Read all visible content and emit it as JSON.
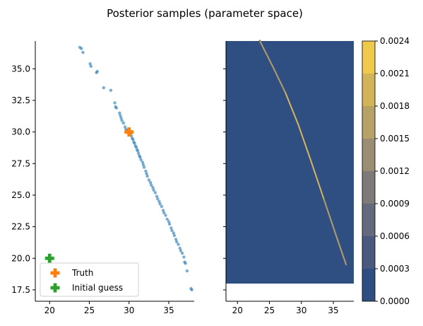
{
  "title": "Posterior samples (parameter space)",
  "colors": {
    "samples": "#1f77b4",
    "truth": "#ff7f0e",
    "initial": "#2ca02c",
    "cmap": [
      "#2f4f83",
      "#4a5a7f",
      "#65697d",
      "#7f7a7a",
      "#9a8d73",
      "#b6a166",
      "#d2b458",
      "#eec94c"
    ]
  },
  "chart_data": [
    {
      "type": "scatter",
      "xlim": [
        18.2,
        38.2
      ],
      "ylim": [
        16.6,
        37.2
      ],
      "xticks": [
        {
          "v": 20,
          "label": "20"
        },
        {
          "v": 25,
          "label": "25"
        },
        {
          "v": 30,
          "label": "30"
        },
        {
          "v": 35,
          "label": "35"
        }
      ],
      "yticks": [
        {
          "v": 17.5,
          "label": "17.5"
        },
        {
          "v": 20.0,
          "label": "20.0"
        },
        {
          "v": 22.5,
          "label": "22.5"
        },
        {
          "v": 25.0,
          "label": "25.0"
        },
        {
          "v": 27.5,
          "label": "27.5"
        },
        {
          "v": 30.0,
          "label": "30.0"
        },
        {
          "v": 32.5,
          "label": "32.5"
        },
        {
          "v": 35.0,
          "label": "35.0"
        }
      ],
      "samples": [
        [
          23.8,
          36.7
        ],
        [
          24.0,
          36.6
        ],
        [
          24.2,
          36.3
        ],
        [
          25.1,
          35.4
        ],
        [
          25.2,
          35.2
        ],
        [
          25.9,
          34.7
        ],
        [
          26.0,
          34.8
        ],
        [
          26.8,
          33.5
        ],
        [
          27.7,
          33.3
        ],
        [
          28.2,
          32.3
        ],
        [
          28.3,
          32.0
        ],
        [
          28.4,
          31.9
        ],
        [
          28.8,
          31.5
        ],
        [
          28.9,
          31.3
        ],
        [
          29.0,
          31.1
        ],
        [
          29.1,
          30.9
        ],
        [
          29.3,
          30.7
        ],
        [
          29.5,
          30.4
        ],
        [
          29.6,
          30.2
        ],
        [
          29.8,
          30.1
        ],
        [
          30.2,
          29.9
        ],
        [
          30.3,
          29.7
        ],
        [
          30.4,
          29.5
        ],
        [
          30.5,
          29.4
        ],
        [
          30.6,
          29.2
        ],
        [
          30.7,
          29.1
        ],
        [
          30.8,
          28.9
        ],
        [
          30.9,
          28.8
        ],
        [
          31.0,
          28.6
        ],
        [
          31.1,
          28.5
        ],
        [
          31.2,
          28.3
        ],
        [
          31.3,
          28.1
        ],
        [
          31.4,
          28.0
        ],
        [
          31.5,
          27.8
        ],
        [
          31.7,
          27.6
        ],
        [
          31.8,
          27.4
        ],
        [
          31.9,
          27.2
        ],
        [
          32.1,
          26.9
        ],
        [
          32.2,
          26.7
        ],
        [
          32.3,
          26.5
        ],
        [
          32.5,
          26.2
        ],
        [
          32.7,
          26.0
        ],
        [
          32.8,
          25.8
        ],
        [
          33.0,
          25.6
        ],
        [
          33.1,
          25.4
        ],
        [
          33.3,
          25.2
        ],
        [
          33.5,
          24.9
        ],
        [
          33.6,
          24.7
        ],
        [
          33.8,
          24.5
        ],
        [
          33.9,
          24.3
        ],
        [
          34.1,
          24.1
        ],
        [
          34.3,
          23.8
        ],
        [
          34.4,
          23.6
        ],
        [
          34.6,
          23.4
        ],
        [
          34.8,
          23.1
        ],
        [
          35.0,
          22.9
        ],
        [
          35.1,
          22.7
        ],
        [
          35.3,
          22.4
        ],
        [
          35.4,
          22.2
        ],
        [
          35.6,
          22.0
        ],
        [
          35.7,
          21.8
        ],
        [
          35.9,
          21.5
        ],
        [
          36.0,
          21.3
        ],
        [
          36.2,
          21.1
        ],
        [
          36.4,
          20.8
        ],
        [
          36.5,
          20.6
        ],
        [
          36.7,
          20.4
        ],
        [
          36.9,
          20.1
        ],
        [
          37.0,
          19.7
        ],
        [
          37.1,
          19.6
        ],
        [
          37.3,
          19.0
        ],
        [
          37.8,
          17.6
        ],
        [
          37.9,
          17.5
        ]
      ],
      "truth": [
        30,
        30
      ],
      "initial": [
        20,
        20
      ],
      "legend": {
        "position": "lower-left",
        "entries": [
          "Truth",
          "Initial guess"
        ]
      }
    },
    {
      "type": "heatmap",
      "xlim": [
        18.2,
        38.2
      ],
      "ylim": [
        16.6,
        37.2
      ],
      "extent": {
        "x": [
          18.2,
          38.2
        ],
        "y": [
          18.0,
          37.2
        ]
      },
      "xticks": [
        {
          "v": 20,
          "label": "20"
        },
        {
          "v": 25,
          "label": "25"
        },
        {
          "v": 30,
          "label": "30"
        },
        {
          "v": 35,
          "label": "35"
        }
      ],
      "ridge": [
        [
          23.5,
          37.2
        ],
        [
          25.5,
          35.2
        ],
        [
          27.5,
          33.1
        ],
        [
          29.5,
          30.6
        ],
        [
          31.5,
          27.7
        ],
        [
          33.5,
          24.7
        ],
        [
          35.5,
          21.7
        ],
        [
          37.0,
          19.5
        ]
      ],
      "colorbar": {
        "min": 0.0,
        "max": 0.0024,
        "levels": [
          0.0,
          0.0003,
          0.0006,
          0.0009,
          0.0012,
          0.0015,
          0.0018,
          0.0021,
          0.0024
        ],
        "ticklabels": [
          "0.0000",
          "0.0003",
          "0.0006",
          "0.0009",
          "0.0012",
          "0.0015",
          "0.0018",
          "0.0021",
          "0.0024"
        ]
      }
    }
  ]
}
